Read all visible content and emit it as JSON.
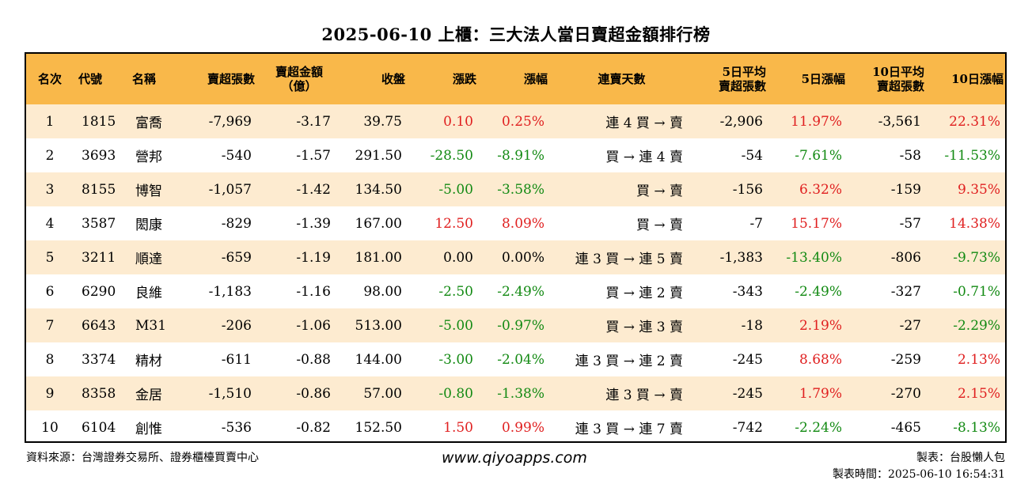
{
  "title": "2025-06-10 上櫃：三大法人當日賣超金額排行榜",
  "headers": {
    "rank": "名次",
    "code": "代號",
    "name": "名稱",
    "sell_lots": "賣超張數",
    "sell_amount_1": "賣超金額",
    "sell_amount_2": "（億）",
    "close": "收盤",
    "change": "漲跌",
    "change_pct": "漲幅",
    "streak": "連賣天數",
    "avg5_1": "5日平均",
    "avg5_2": "賣超張數",
    "pct5": "5日漲幅",
    "avg10_1": "10日平均",
    "avg10_2": "賣超張數",
    "pct10": "10日漲幅"
  },
  "rows": [
    {
      "rank": "1",
      "code": "1815",
      "name": "富喬",
      "lots": "-7,969",
      "amount": "-3.17",
      "close": "39.75",
      "change": "0.10",
      "change_pct": "0.25%",
      "streak": "連 4 買 → 賣",
      "avg5": "-2,906",
      "pct5": "11.97%",
      "avg10": "-3,561",
      "pct10": "22.31%",
      "c_change": "pos",
      "c_pct": "pos",
      "c_pct5": "pos",
      "c_pct10": "pos"
    },
    {
      "rank": "2",
      "code": "3693",
      "name": "營邦",
      "lots": "-540",
      "amount": "-1.57",
      "close": "291.50",
      "change": "-28.50",
      "change_pct": "-8.91%",
      "streak": "買 → 連 4 賣",
      "avg5": "-54",
      "pct5": "-7.61%",
      "avg10": "-58",
      "pct10": "-11.53%",
      "c_change": "neg",
      "c_pct": "neg",
      "c_pct5": "neg",
      "c_pct10": "neg"
    },
    {
      "rank": "3",
      "code": "8155",
      "name": "博智",
      "lots": "-1,057",
      "amount": "-1.42",
      "close": "134.50",
      "change": "-5.00",
      "change_pct": "-3.58%",
      "streak": "買 → 賣",
      "avg5": "-156",
      "pct5": "6.32%",
      "avg10": "-159",
      "pct10": "9.35%",
      "c_change": "neg",
      "c_pct": "neg",
      "c_pct5": "pos",
      "c_pct10": "pos"
    },
    {
      "rank": "4",
      "code": "3587",
      "name": "閎康",
      "lots": "-829",
      "amount": "-1.39",
      "close": "167.00",
      "change": "12.50",
      "change_pct": "8.09%",
      "streak": "買 → 賣",
      "avg5": "-7",
      "pct5": "15.17%",
      "avg10": "-57",
      "pct10": "14.38%",
      "c_change": "pos",
      "c_pct": "pos",
      "c_pct5": "pos",
      "c_pct10": "pos"
    },
    {
      "rank": "5",
      "code": "3211",
      "name": "順達",
      "lots": "-659",
      "amount": "-1.19",
      "close": "181.00",
      "change": "0.00",
      "change_pct": "0.00%",
      "streak": "連 3 買 → 連 5 賣",
      "avg5": "-1,383",
      "pct5": "-13.40%",
      "avg10": "-806",
      "pct10": "-9.73%",
      "c_change": "zero",
      "c_pct": "zero",
      "c_pct5": "neg",
      "c_pct10": "neg"
    },
    {
      "rank": "6",
      "code": "6290",
      "name": "良維",
      "lots": "-1,183",
      "amount": "-1.16",
      "close": "98.00",
      "change": "-2.50",
      "change_pct": "-2.49%",
      "streak": "買 → 連 2 賣",
      "avg5": "-343",
      "pct5": "-2.49%",
      "avg10": "-327",
      "pct10": "-0.71%",
      "c_change": "neg",
      "c_pct": "neg",
      "c_pct5": "neg",
      "c_pct10": "neg"
    },
    {
      "rank": "7",
      "code": "6643",
      "name": "M31",
      "lots": "-206",
      "amount": "-1.06",
      "close": "513.00",
      "change": "-5.00",
      "change_pct": "-0.97%",
      "streak": "買 → 連 3 賣",
      "avg5": "-18",
      "pct5": "2.19%",
      "avg10": "-27",
      "pct10": "-2.29%",
      "c_change": "neg",
      "c_pct": "neg",
      "c_pct5": "pos",
      "c_pct10": "neg"
    },
    {
      "rank": "8",
      "code": "3374",
      "name": "精材",
      "lots": "-611",
      "amount": "-0.88",
      "close": "144.00",
      "change": "-3.00",
      "change_pct": "-2.04%",
      "streak": "連 3 買 → 連 2 賣",
      "avg5": "-245",
      "pct5": "8.68%",
      "avg10": "-259",
      "pct10": "2.13%",
      "c_change": "neg",
      "c_pct": "neg",
      "c_pct5": "pos",
      "c_pct10": "pos"
    },
    {
      "rank": "9",
      "code": "8358",
      "name": "金居",
      "lots": "-1,510",
      "amount": "-0.86",
      "close": "57.00",
      "change": "-0.80",
      "change_pct": "-1.38%",
      "streak": "連 3 買 → 賣",
      "avg5": "-245",
      "pct5": "1.79%",
      "avg10": "-270",
      "pct10": "2.15%",
      "c_change": "neg",
      "c_pct": "neg",
      "c_pct5": "pos",
      "c_pct10": "pos"
    },
    {
      "rank": "10",
      "code": "6104",
      "name": "創惟",
      "lots": "-536",
      "amount": "-0.82",
      "close": "152.50",
      "change": "1.50",
      "change_pct": "0.99%",
      "streak": "連 3 買 → 連 7 賣",
      "avg5": "-742",
      "pct5": "-2.24%",
      "avg10": "-465",
      "pct10": "-8.13%",
      "c_change": "pos",
      "c_pct": "pos",
      "c_pct5": "neg",
      "c_pct10": "neg"
    }
  ],
  "footer": {
    "source": "資料來源：台灣證券交易所、證券櫃檯買賣中心",
    "website": "www.qiyoapps.com",
    "author": "製表：台股懶人包",
    "made_time": "製表時間：2025-06-10 16:54:31"
  },
  "colors": {
    "header_bg": "#f9b84a",
    "odd_row_bg": "#fdebd0",
    "up": "#e02020",
    "down": "#138a13"
  }
}
